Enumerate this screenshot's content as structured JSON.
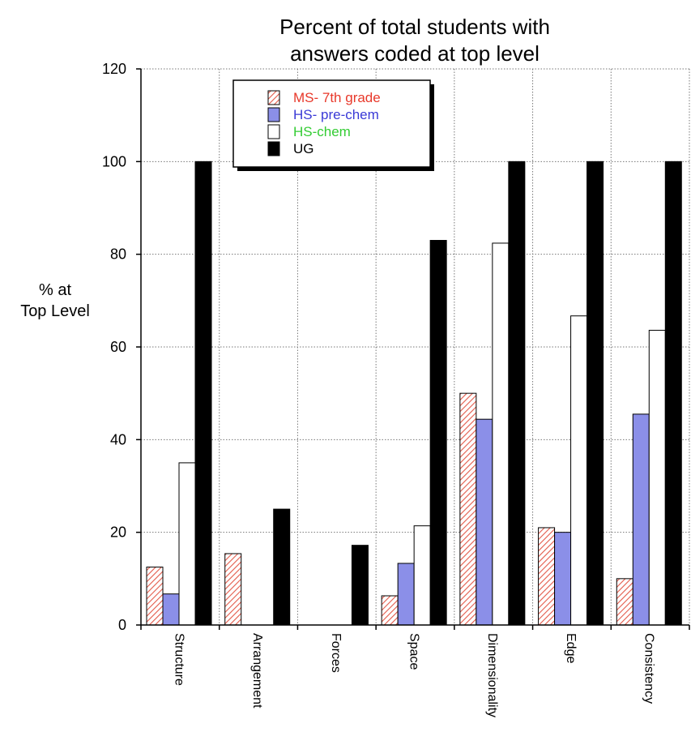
{
  "chart_data": {
    "type": "bar",
    "title_lines": [
      "Percent of total students with",
      "answers coded at top level"
    ],
    "ylabel_lines": [
      "% at",
      "Top Level"
    ],
    "xlabel": "",
    "ylim": [
      0,
      120
    ],
    "yticks": [
      0,
      20,
      40,
      60,
      80,
      100,
      120
    ],
    "grid": true,
    "legend_position": "top-left",
    "categories": [
      "Structure",
      "Arrangement",
      "Forces",
      "Space",
      "Dimensionality",
      "Edge",
      "Consistency"
    ],
    "series": [
      {
        "name": "MS- 7th grade",
        "color": "#e8382a",
        "fill": "hatched-red",
        "values": [
          12.5,
          15.4,
          0,
          6.3,
          50,
          21,
          10
        ]
      },
      {
        "name": "HS- pre-chem",
        "color": "#3a3ad6",
        "fill": "#8b8fe8",
        "values": [
          6.7,
          0,
          0,
          13.3,
          44.4,
          20,
          45.5
        ]
      },
      {
        "name": "HS-chem",
        "color": "#33cc33",
        "fill": "#ffffff",
        "values": [
          35,
          0,
          0,
          21.4,
          82.4,
          66.7,
          63.6
        ]
      },
      {
        "name": "UG",
        "color": "#000000",
        "fill": "#000000",
        "values": [
          100,
          25,
          17.2,
          83,
          100,
          100,
          100
        ]
      }
    ]
  }
}
